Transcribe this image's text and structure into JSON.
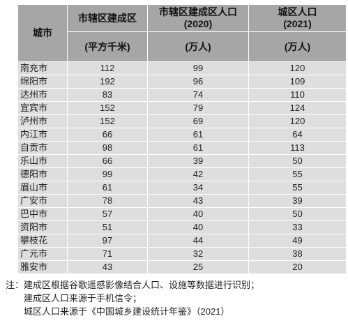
{
  "table": {
    "headers": {
      "city": "城市",
      "area": "市辖区建成区",
      "area_unit": "(平方千米)",
      "pop2020": [
        "市辖区建成区人口",
        "(2020)"
      ],
      "pop2020_unit": "(万人)",
      "pop2021": [
        "城区人口",
        "(2021)"
      ],
      "pop2021_unit": "(万人)"
    },
    "rows": [
      {
        "city": "南充市",
        "area": "112",
        "pop2020": "99",
        "pop2021": "120"
      },
      {
        "city": "绵阳市",
        "area": "192",
        "pop2020": "96",
        "pop2021": "109"
      },
      {
        "city": "达州市",
        "area": "83",
        "pop2020": "74",
        "pop2021": "110"
      },
      {
        "city": "宜宾市",
        "area": "152",
        "pop2020": "79",
        "pop2021": "124"
      },
      {
        "city": "泸州市",
        "area": "152",
        "pop2020": "69",
        "pop2021": "120"
      },
      {
        "city": "内江市",
        "area": "66",
        "pop2020": "61",
        "pop2021": "64"
      },
      {
        "city": "自贡市",
        "area": "98",
        "pop2020": "61",
        "pop2021": "113"
      },
      {
        "city": "乐山市",
        "area": "66",
        "pop2020": "39",
        "pop2021": "50"
      },
      {
        "city": "德阳市",
        "area": "99",
        "pop2020": "42",
        "pop2021": "55"
      },
      {
        "city": "眉山市",
        "area": "61",
        "pop2020": "34",
        "pop2021": "55"
      },
      {
        "city": "广安市",
        "area": "78",
        "pop2020": "43",
        "pop2021": "39"
      },
      {
        "city": "巴中市",
        "area": "57",
        "pop2020": "40",
        "pop2021": "50"
      },
      {
        "city": "资阳市",
        "area": "51",
        "pop2020": "40",
        "pop2021": "33"
      },
      {
        "city": "攀枝花",
        "area": "97",
        "pop2020": "44",
        "pop2021": "49"
      },
      {
        "city": "广元市",
        "area": "71",
        "pop2020": "32",
        "pop2021": "38"
      },
      {
        "city": "雅安市",
        "area": "43",
        "pop2020": "25",
        "pop2021": "20"
      }
    ]
  },
  "notes": [
    "注：建成区根据谷歌遥感影像结合人口、设施等数据进行识别；",
    "建成区人口来源于手机信令；",
    "城区人口来源于《中国城乡建设统计年鉴》（2021）"
  ]
}
